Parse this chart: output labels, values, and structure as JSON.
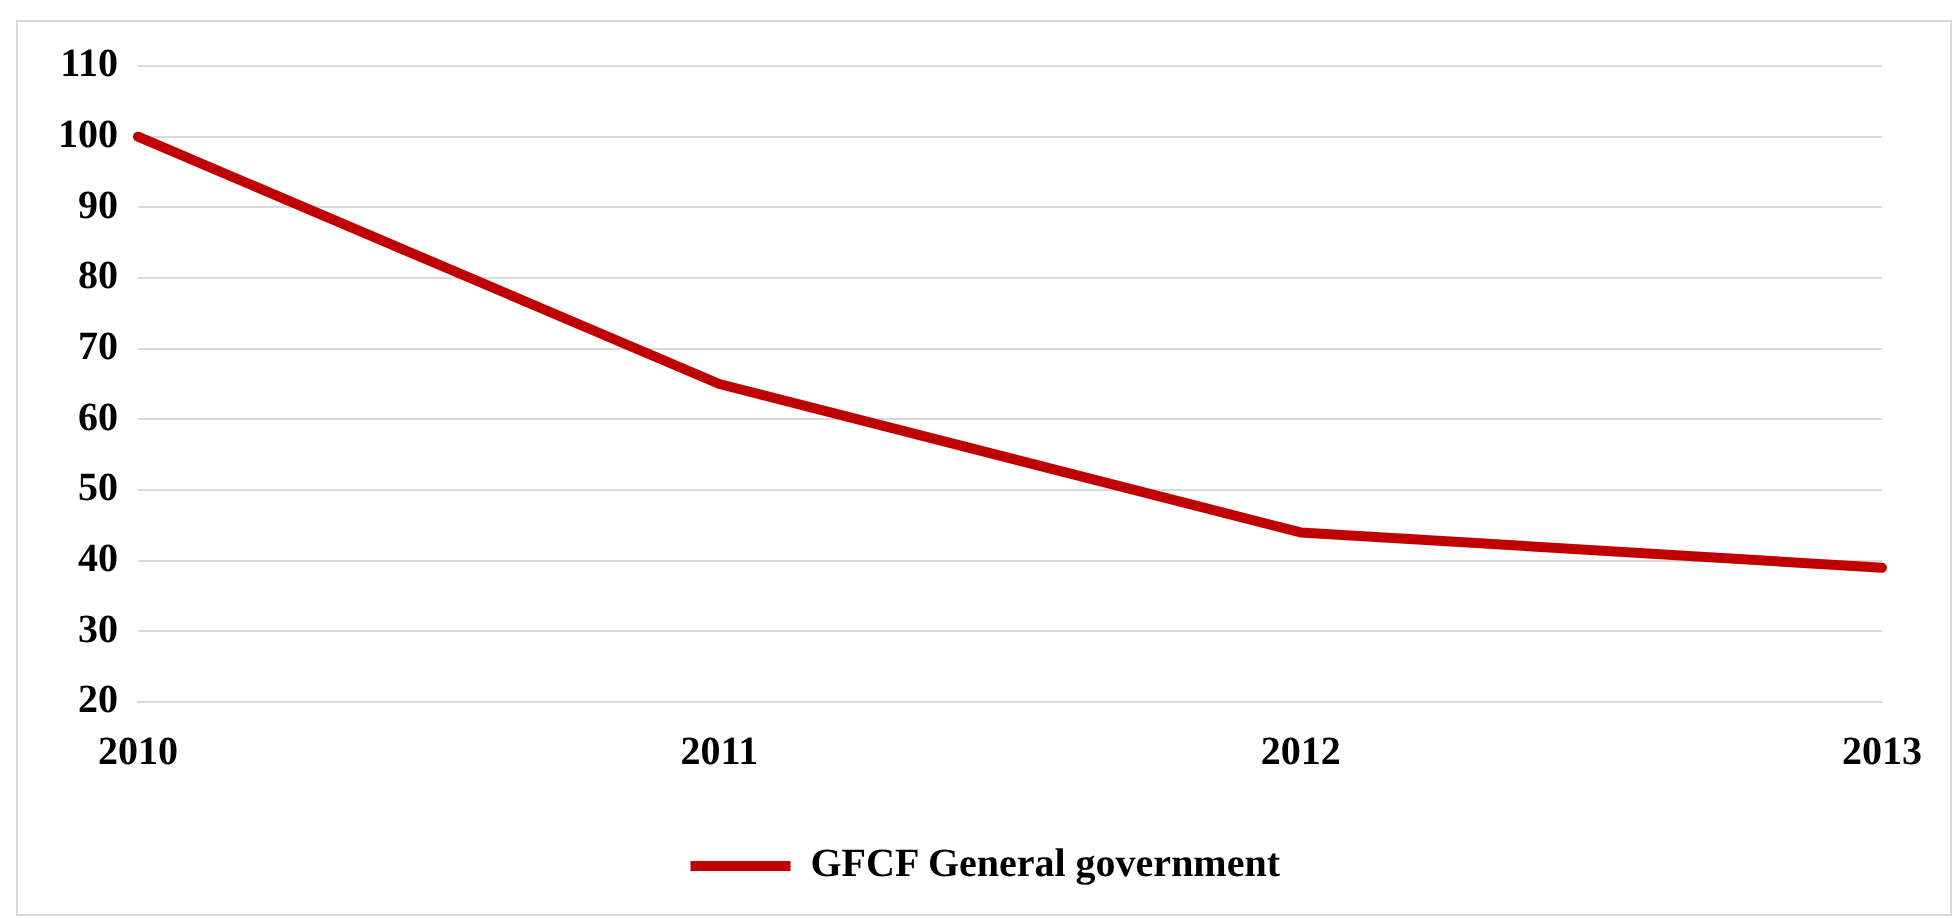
{
  "chart_data": {
    "type": "line",
    "categories": [
      "2010",
      "2011",
      "2012",
      "2013"
    ],
    "series": [
      {
        "name": "GFCF General government",
        "color": "#c00000",
        "values": [
          100,
          65,
          44,
          39
        ]
      }
    ],
    "ylim": [
      20,
      110
    ],
    "yticks": [
      20,
      30,
      40,
      50,
      60,
      70,
      80,
      90,
      100,
      110
    ],
    "grid": "y",
    "legend": "bottom",
    "marker": "none",
    "line_style": "solid"
  }
}
